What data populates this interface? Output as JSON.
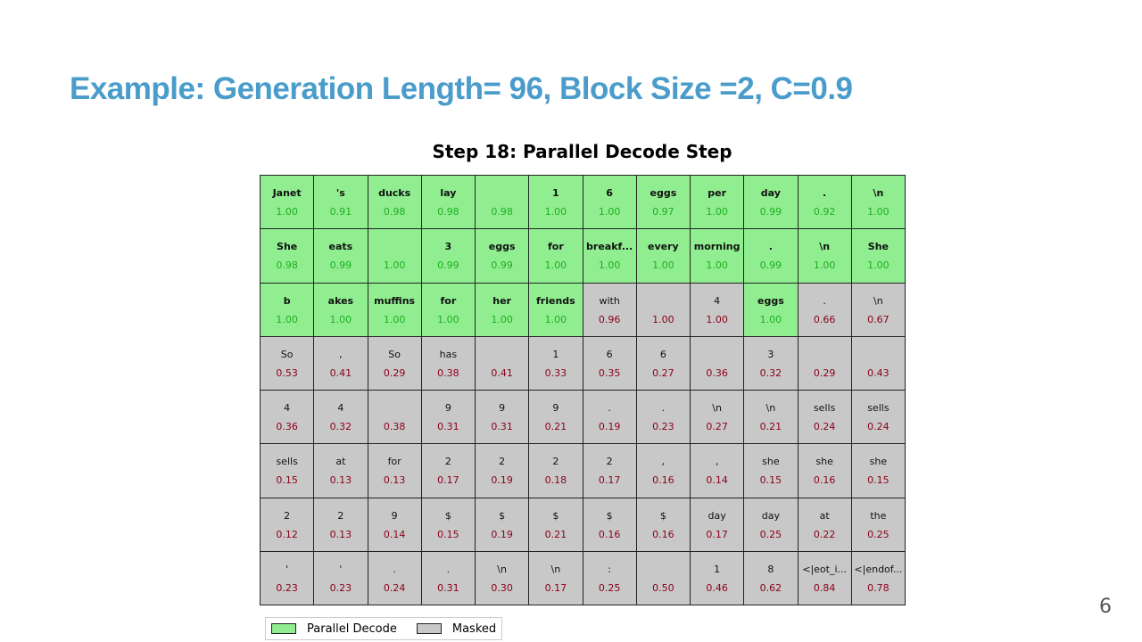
{
  "title": "Example: Generation Length= 96, Block Size =2, C=0.9",
  "figure": {
    "title": "Step 18: Parallel Decode Step",
    "legend": [
      {
        "label": "Parallel Decode",
        "color": "#90ee90",
        "text_color": "#1fae1f"
      },
      {
        "label": "Masked",
        "color": "#c8c8c8",
        "text_color": "#8b0018"
      }
    ],
    "rows": [
      [
        {
          "token": "Janet",
          "prob": "1.00",
          "color": "#90ee90"
        },
        {
          "token": "'s",
          "prob": "0.91",
          "color": "#90ee90"
        },
        {
          "token": "ducks",
          "prob": "0.98",
          "color": "#90ee90"
        },
        {
          "token": "lay",
          "prob": "0.98",
          "color": "#90ee90"
        },
        {
          "token": " ",
          "prob": "0.98",
          "color": "#90ee90"
        },
        {
          "token": "1",
          "prob": "1.00",
          "color": "#90ee90"
        },
        {
          "token": "6",
          "prob": "1.00",
          "color": "#90ee90"
        },
        {
          "token": "eggs",
          "prob": "0.97",
          "color": "#90ee90"
        },
        {
          "token": "per",
          "prob": "1.00",
          "color": "#90ee90"
        },
        {
          "token": "day",
          "prob": "0.99",
          "color": "#90ee90"
        },
        {
          "token": ".",
          "prob": "0.92",
          "color": "#90ee90"
        },
        {
          "token": "\\n",
          "prob": "1.00",
          "color": "#90ee90"
        }
      ],
      [
        {
          "token": "She",
          "prob": "0.98",
          "color": "#90ee90"
        },
        {
          "token": "eats",
          "prob": "0.99",
          "color": "#90ee90"
        },
        {
          "token": " ",
          "prob": "1.00",
          "color": "#90ee90"
        },
        {
          "token": "3",
          "prob": "0.99",
          "color": "#90ee90"
        },
        {
          "token": "eggs",
          "prob": "0.99",
          "color": "#90ee90"
        },
        {
          "token": "for",
          "prob": "1.00",
          "color": "#90ee90"
        },
        {
          "token": "breakf...",
          "prob": "1.00",
          "color": "#90ee90"
        },
        {
          "token": "every",
          "prob": "1.00",
          "color": "#90ee90"
        },
        {
          "token": "morning",
          "prob": "1.00",
          "color": "#90ee90"
        },
        {
          "token": ".",
          "prob": "0.99",
          "color": "#90ee90"
        },
        {
          "token": "\\n",
          "prob": "1.00",
          "color": "#90ee90"
        },
        {
          "token": "She",
          "prob": "1.00",
          "color": "#90ee90"
        }
      ],
      [
        {
          "token": "b",
          "prob": "1.00",
          "color": "#90ee90"
        },
        {
          "token": "akes",
          "prob": "1.00",
          "color": "#90ee90"
        },
        {
          "token": "muffins",
          "prob": "1.00",
          "color": "#90ee90"
        },
        {
          "token": "for",
          "prob": "1.00",
          "color": "#90ee90"
        },
        {
          "token": "her",
          "prob": "1.00",
          "color": "#90ee90"
        },
        {
          "token": "friends",
          "prob": "1.00",
          "color": "#90ee90"
        },
        {
          "token": "with",
          "prob": "0.96",
          "color": "#c8c8c8"
        },
        {
          "token": " ",
          "prob": "1.00",
          "color": "#c8c8c8"
        },
        {
          "token": "4",
          "prob": "1.00",
          "color": "#c8c8c8"
        },
        {
          "token": "eggs",
          "prob": "1.00",
          "color": "#90ee90"
        },
        {
          "token": ".",
          "prob": "0.66",
          "color": "#c8c8c8"
        },
        {
          "token": "\\n",
          "prob": "0.67",
          "color": "#c8c8c8"
        }
      ],
      [
        {
          "token": "So",
          "prob": "0.53",
          "color": "#c8c8c8"
        },
        {
          "token": ",",
          "prob": "0.41",
          "color": "#c8c8c8"
        },
        {
          "token": "So",
          "prob": "0.29",
          "color": "#c8c8c8"
        },
        {
          "token": "has",
          "prob": "0.38",
          "color": "#c8c8c8"
        },
        {
          "token": " ",
          "prob": "0.41",
          "color": "#c8c8c8"
        },
        {
          "token": "1",
          "prob": "0.33",
          "color": "#c8c8c8"
        },
        {
          "token": "6",
          "prob": "0.35",
          "color": "#c8c8c8"
        },
        {
          "token": "6",
          "prob": "0.27",
          "color": "#c8c8c8"
        },
        {
          "token": " ",
          "prob": "0.36",
          "color": "#c8c8c8"
        },
        {
          "token": "3",
          "prob": "0.32",
          "color": "#c8c8c8"
        },
        {
          "token": " ",
          "prob": "0.29",
          "color": "#c8c8c8"
        },
        {
          "token": " ",
          "prob": "0.43",
          "color": "#c8c8c8"
        }
      ],
      [
        {
          "token": "4",
          "prob": "0.36",
          "color": "#c8c8c8"
        },
        {
          "token": "4",
          "prob": "0.32",
          "color": "#c8c8c8"
        },
        {
          "token": " ",
          "prob": "0.38",
          "color": "#c8c8c8"
        },
        {
          "token": "9",
          "prob": "0.31",
          "color": "#c8c8c8"
        },
        {
          "token": "9",
          "prob": "0.31",
          "color": "#c8c8c8"
        },
        {
          "token": "9",
          "prob": "0.21",
          "color": "#c8c8c8"
        },
        {
          "token": ".",
          "prob": "0.19",
          "color": "#c8c8c8"
        },
        {
          "token": ".",
          "prob": "0.23",
          "color": "#c8c8c8"
        },
        {
          "token": "\\n",
          "prob": "0.27",
          "color": "#c8c8c8"
        },
        {
          "token": "\\n",
          "prob": "0.21",
          "color": "#c8c8c8"
        },
        {
          "token": "sells",
          "prob": "0.24",
          "color": "#c8c8c8"
        },
        {
          "token": "sells",
          "prob": "0.24",
          "color": "#c8c8c8"
        }
      ],
      [
        {
          "token": "sells",
          "prob": "0.15",
          "color": "#c8c8c8"
        },
        {
          "token": "at",
          "prob": "0.13",
          "color": "#c8c8c8"
        },
        {
          "token": "for",
          "prob": "0.13",
          "color": "#c8c8c8"
        },
        {
          "token": "2",
          "prob": "0.17",
          "color": "#c8c8c8"
        },
        {
          "token": "2",
          "prob": "0.19",
          "color": "#c8c8c8"
        },
        {
          "token": "2",
          "prob": "0.18",
          "color": "#c8c8c8"
        },
        {
          "token": "2",
          "prob": "0.17",
          "color": "#c8c8c8"
        },
        {
          "token": ",",
          "prob": "0.16",
          "color": "#c8c8c8"
        },
        {
          "token": ",",
          "prob": "0.14",
          "color": "#c8c8c8"
        },
        {
          "token": "she",
          "prob": "0.15",
          "color": "#c8c8c8"
        },
        {
          "token": "she",
          "prob": "0.16",
          "color": "#c8c8c8"
        },
        {
          "token": "she",
          "prob": "0.15",
          "color": "#c8c8c8"
        }
      ],
      [
        {
          "token": "2",
          "prob": "0.12",
          "color": "#c8c8c8"
        },
        {
          "token": "2",
          "prob": "0.13",
          "color": "#c8c8c8"
        },
        {
          "token": "9",
          "prob": "0.14",
          "color": "#c8c8c8"
        },
        {
          "token": "$",
          "prob": "0.15",
          "color": "#c8c8c8"
        },
        {
          "token": "$",
          "prob": "0.19",
          "color": "#c8c8c8"
        },
        {
          "token": "$",
          "prob": "0.21",
          "color": "#c8c8c8"
        },
        {
          "token": "$",
          "prob": "0.16",
          "color": "#c8c8c8"
        },
        {
          "token": "$",
          "prob": "0.16",
          "color": "#c8c8c8"
        },
        {
          "token": "day",
          "prob": "0.17",
          "color": "#c8c8c8"
        },
        {
          "token": "day",
          "prob": "0.25",
          "color": "#c8c8c8"
        },
        {
          "token": "at",
          "prob": "0.22",
          "color": "#c8c8c8"
        },
        {
          "token": "the",
          "prob": "0.25",
          "color": "#c8c8c8"
        }
      ],
      [
        {
          "token": "'",
          "prob": "0.23",
          "color": "#c8c8c8"
        },
        {
          "token": "'",
          "prob": "0.23",
          "color": "#c8c8c8"
        },
        {
          "token": ".",
          "prob": "0.24",
          "color": "#c8c8c8"
        },
        {
          "token": ".",
          "prob": "0.31",
          "color": "#c8c8c8"
        },
        {
          "token": "\\n",
          "prob": "0.30",
          "color": "#c8c8c8"
        },
        {
          "token": "\\n",
          "prob": "0.17",
          "color": "#c8c8c8"
        },
        {
          "token": ":",
          "prob": "0.25",
          "color": "#c8c8c8"
        },
        {
          "token": " ",
          "prob": "0.50",
          "color": "#c8c8c8"
        },
        {
          "token": "1",
          "prob": "0.46",
          "color": "#c8c8c8"
        },
        {
          "token": "8",
          "prob": "0.62",
          "color": "#c8c8c8"
        },
        {
          "token": "<|eot_i...",
          "prob": "0.84",
          "color": "#c8c8c8"
        },
        {
          "token": "<|endof...",
          "prob": "0.78",
          "color": "#c8c8c8"
        }
      ]
    ]
  },
  "page_number": "6"
}
